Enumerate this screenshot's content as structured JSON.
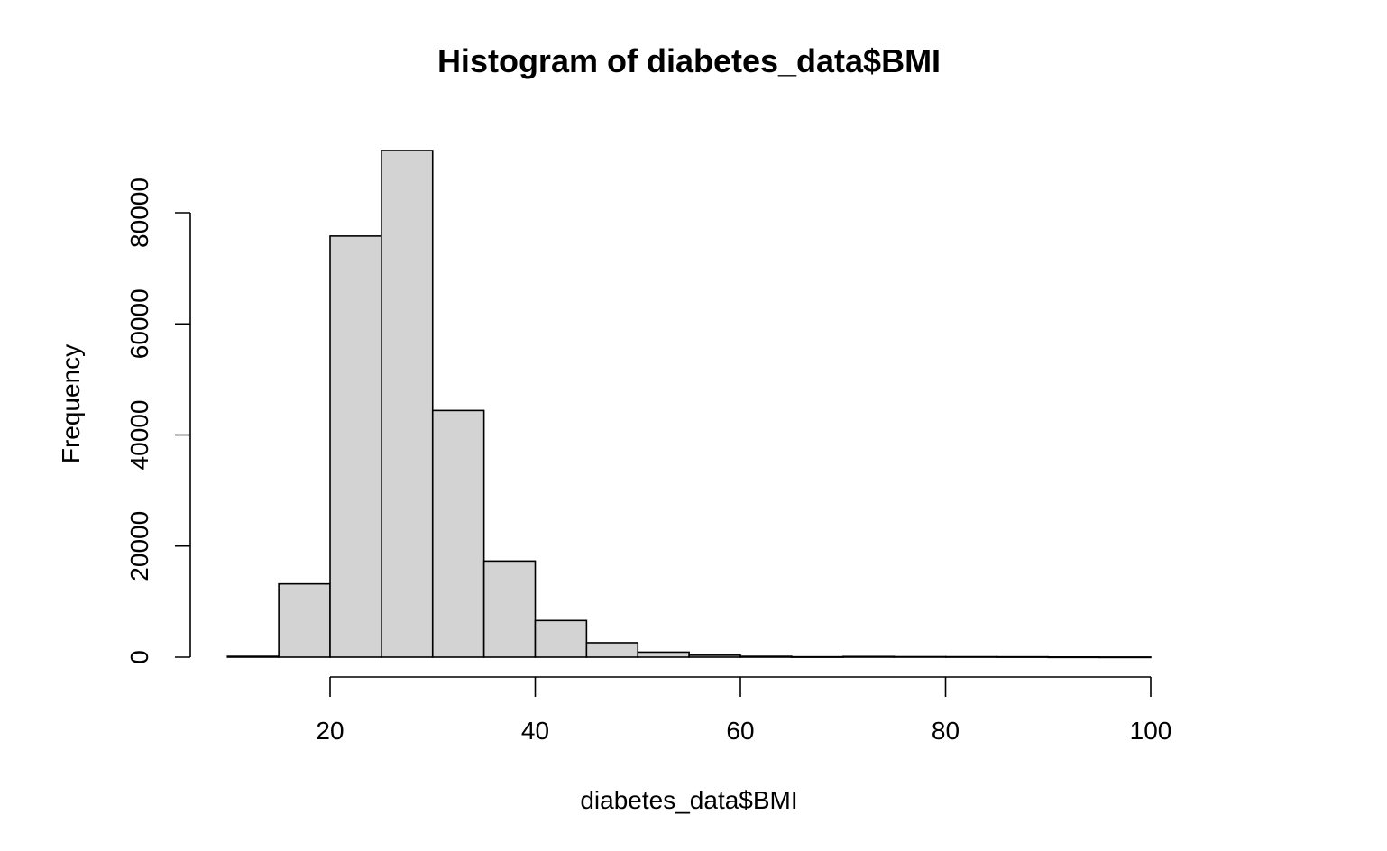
{
  "chart_data": {
    "type": "bar",
    "title": "Histogram of diabetes_data$BMI",
    "xlabel": "diabetes_data$BMI",
    "ylabel": "Frequency",
    "bin_edges": [
      10,
      15,
      20,
      25,
      30,
      35,
      40,
      45,
      50,
      55,
      60,
      65,
      70,
      75,
      80,
      85,
      90,
      95,
      100
    ],
    "values": [
      150,
      13200,
      75800,
      91200,
      44400,
      17300,
      6600,
      2600,
      900,
      350,
      150,
      60,
      120,
      80,
      70,
      60,
      30,
      20
    ],
    "xlim": [
      10,
      100
    ],
    "ylim": [
      0,
      92000
    ],
    "x_ticks": [
      20,
      40,
      60,
      80,
      100
    ],
    "y_ticks": [
      0,
      20000,
      40000,
      60000,
      80000
    ],
    "x_tick_labels": [
      "20",
      "40",
      "60",
      "80",
      "100"
    ],
    "y_tick_labels": [
      "0",
      "20000",
      "40000",
      "60000",
      "80000"
    ],
    "colors": {
      "bar_fill": "#d3d3d3",
      "bar_stroke": "#000000"
    }
  }
}
